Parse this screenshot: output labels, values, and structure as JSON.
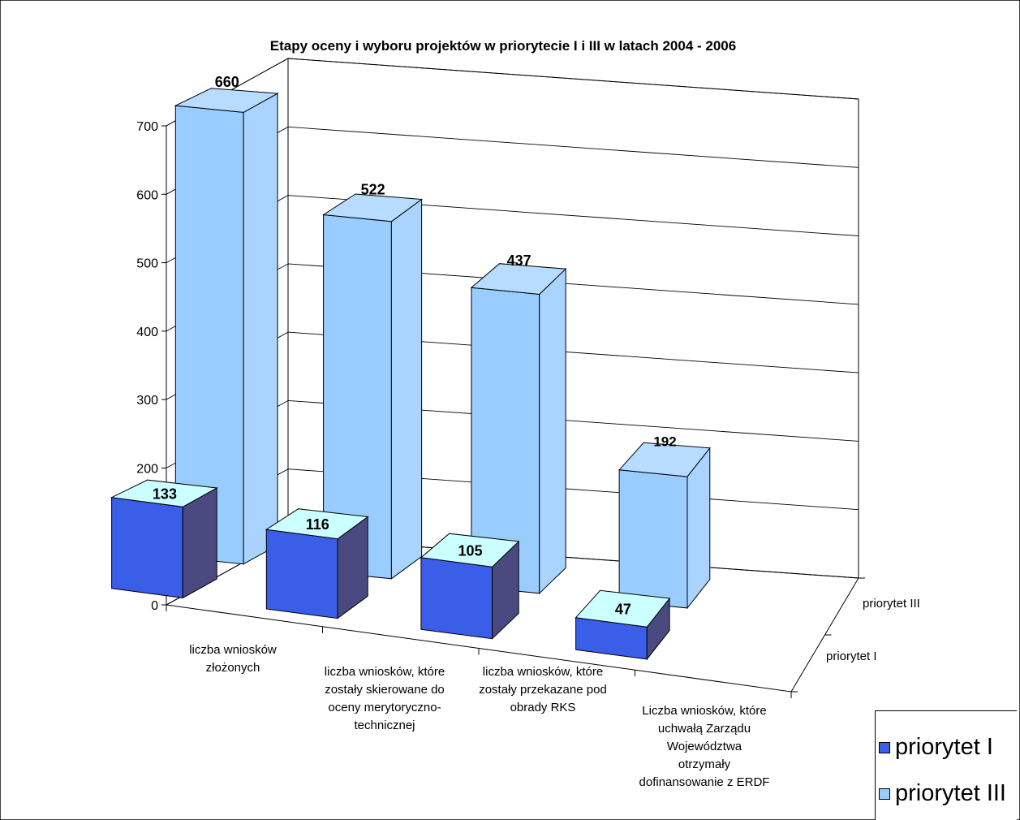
{
  "chart_data": {
    "type": "bar",
    "title": "Etapy oceny i wyboru projektów w priorytecie I i III w latach 2004 - 2006",
    "categories": [
      "liczba wniosków złożonych",
      "liczba wniosków, które zostały skierowane do oceny merytoryczno-technicznej",
      "liczba wniosków, które zostały przekazane pod obrady RKS",
      "Liczba wniosków, które uchwałą Zarządu Województwa otrzymały dofinansowanie z ERDF"
    ],
    "category_lines": [
      [
        "liczba wniosków",
        "złożonych"
      ],
      [
        "liczba wniosków, które",
        "zostały skierowane do",
        "oceny merytoryczno-",
        "technicznej"
      ],
      [
        "liczba wniosków, które",
        "zostały przekazane pod",
        "obrady RKS"
      ],
      [
        "Liczba wniosków, które",
        "uchwałą Zarządu",
        "Województwa",
        "otrzymały",
        "dofinansowanie z ERDF"
      ]
    ],
    "series": [
      {
        "name": "priorytet I",
        "values": [
          133,
          116,
          105,
          47
        ],
        "color": "#3a5ee8"
      },
      {
        "name": "priorytet III",
        "values": [
          660,
          522,
          437,
          192
        ],
        "color": "#99ccff"
      }
    ],
    "yticks": [
      "0",
      "100",
      "200",
      "300",
      "400",
      "500",
      "600",
      "700"
    ],
    "ylim": [
      0,
      700
    ],
    "depth_labels": [
      "priorytet I",
      "priorytet III"
    ],
    "grid": true,
    "legend": "bottom-right"
  }
}
